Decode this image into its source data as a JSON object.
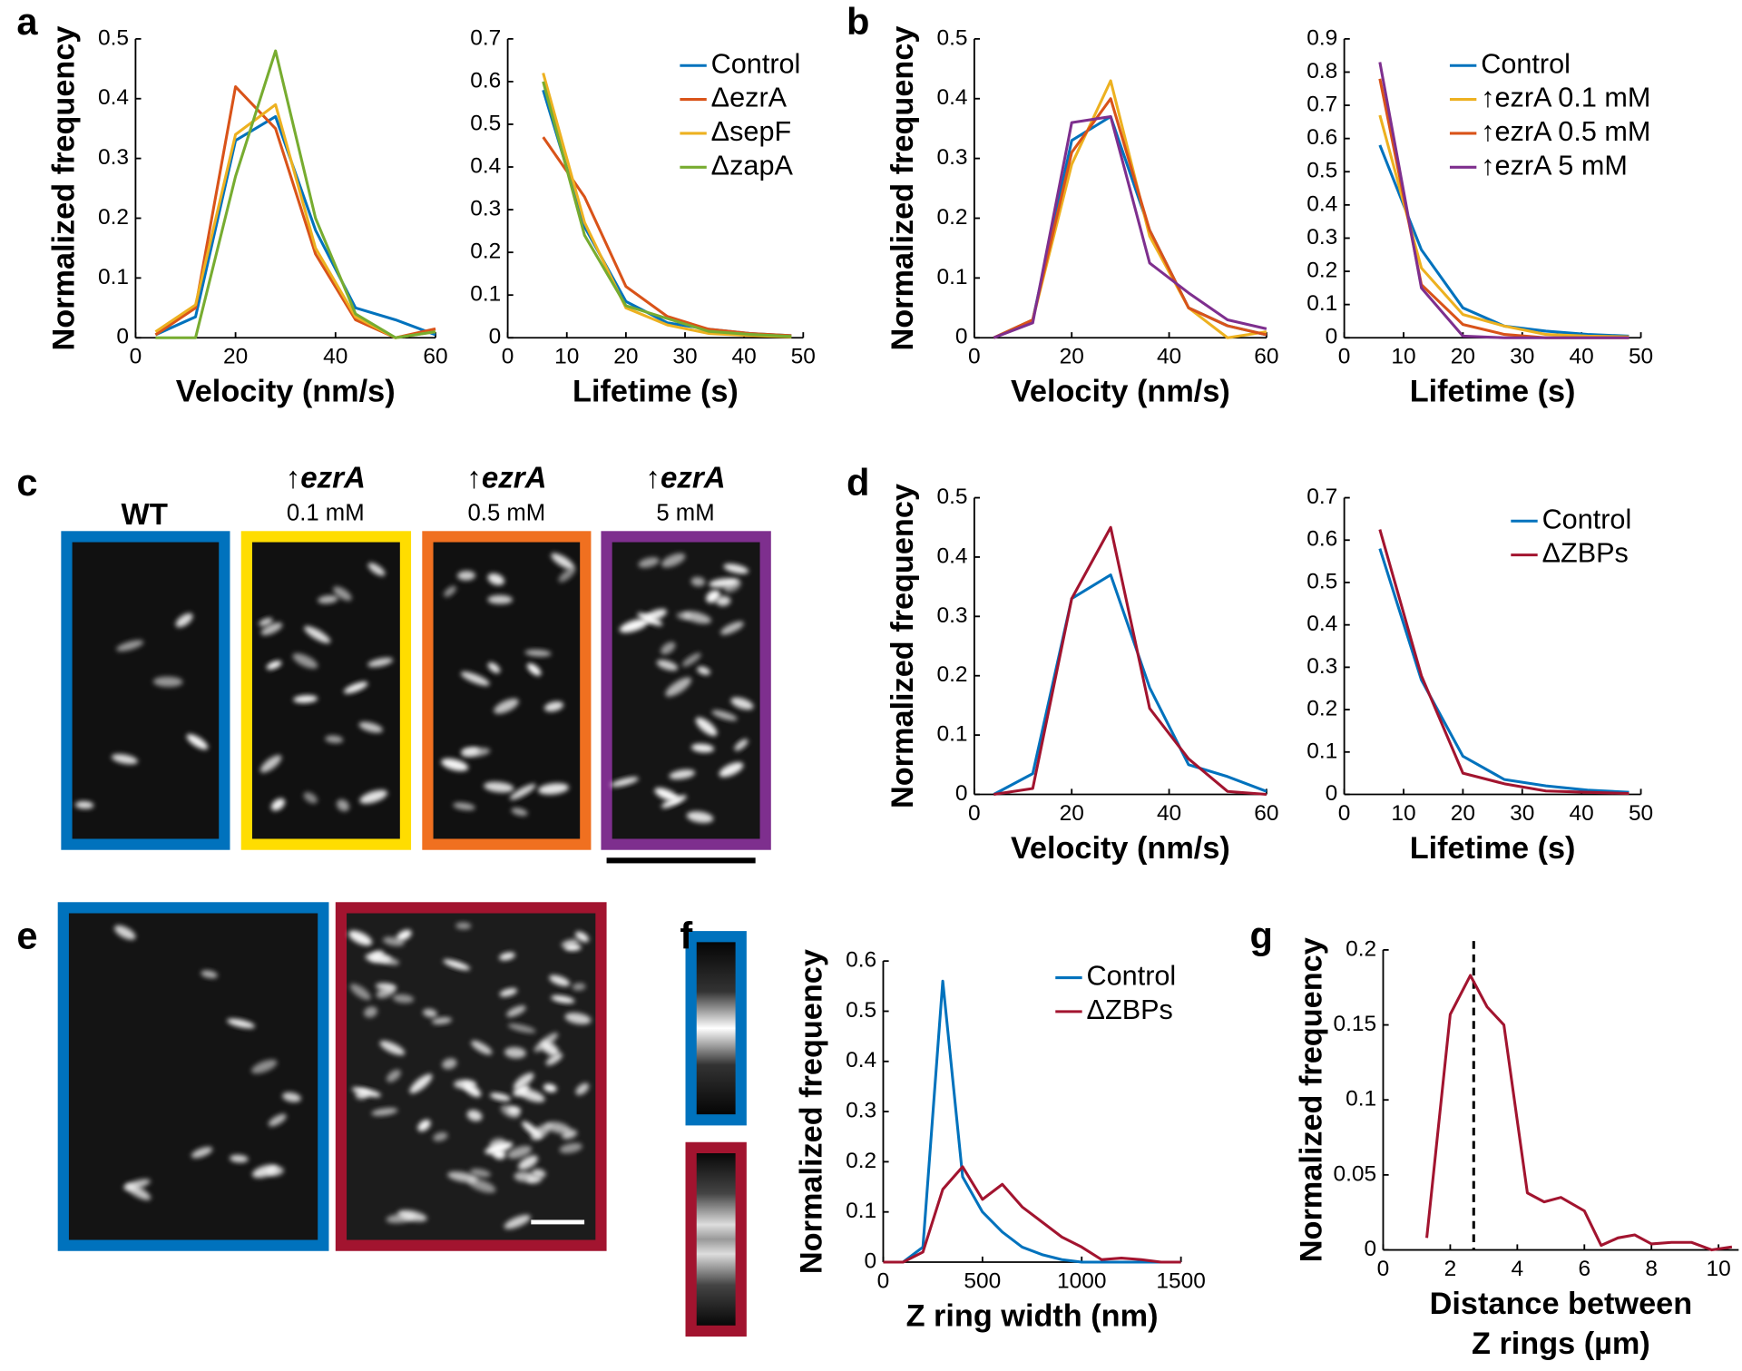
{
  "chart_data": [
    {
      "type": "line",
      "ylabel": "Normalized frequency",
      "xlabel": "Velocity (nm/s)",
      "x": [
        4,
        12,
        20,
        28,
        36,
        44,
        52,
        60
      ],
      "xlim": [
        0,
        60
      ],
      "xticks": [
        0,
        20,
        40,
        60
      ],
      "ylim": [
        0,
        0.5
      ],
      "yticks": [
        0,
        0.1,
        0.2,
        0.3,
        0.4,
        0.5
      ],
      "series": [
        {
          "name": "Control",
          "color": "#0072bd",
          "values": [
            0.005,
            0.035,
            0.33,
            0.37,
            0.18,
            0.05,
            0.03,
            0.005
          ]
        },
        {
          "name": "ΔezrA",
          "color": "#d95319",
          "values": [
            0.005,
            0.05,
            0.42,
            0.35,
            0.14,
            0.03,
            0,
            0.015
          ]
        },
        {
          "name": "ΔsepF",
          "color": "#edb120",
          "values": [
            0.01,
            0.055,
            0.34,
            0.39,
            0.15,
            0.035,
            0,
            0.01
          ]
        },
        {
          "name": "ΔzapA",
          "color": "#77ac30",
          "values": [
            0,
            0,
            0.27,
            0.48,
            0.2,
            0.04,
            0,
            0.01
          ]
        }
      ]
    },
    {
      "type": "line",
      "xlabel": "Lifetime (s)",
      "legend": "upper right",
      "x": [
        6,
        13,
        20,
        27,
        34,
        41,
        48
      ],
      "xlim": [
        0,
        50
      ],
      "xticks": [
        0,
        10,
        20,
        30,
        40,
        50
      ],
      "ylim": [
        0,
        0.7
      ],
      "yticks": [
        0,
        0.1,
        0.2,
        0.3,
        0.4,
        0.5,
        0.6,
        0.7
      ],
      "series": [
        {
          "name": "Control",
          "color": "#0072bd",
          "values": [
            0.58,
            0.26,
            0.085,
            0.035,
            0.02,
            0.01,
            0.005
          ]
        },
        {
          "name": "ΔezrA",
          "color": "#d95319",
          "values": [
            0.47,
            0.33,
            0.12,
            0.05,
            0.02,
            0.01,
            0.005
          ]
        },
        {
          "name": "ΔsepF",
          "color": "#edb120",
          "values": [
            0.62,
            0.27,
            0.07,
            0.03,
            0.01,
            0.005,
            0.002
          ]
        },
        {
          "name": "ΔzapA",
          "color": "#77ac30",
          "values": [
            0.6,
            0.24,
            0.075,
            0.045,
            0.015,
            0.008,
            0.003
          ]
        }
      ]
    },
    {
      "type": "line",
      "ylabel": "Normalized frequency",
      "xlabel": "Velocity (nm/s)",
      "x": [
        4,
        12,
        20,
        28,
        36,
        44,
        52,
        60
      ],
      "xlim": [
        0,
        60
      ],
      "xticks": [
        0,
        20,
        40,
        60
      ],
      "ylim": [
        0,
        0.5
      ],
      "yticks": [
        0,
        0.1,
        0.2,
        0.3,
        0.4,
        0.5
      ],
      "series": [
        {
          "name": "Control",
          "color": "#0072bd",
          "values": [
            0,
            0.03,
            0.33,
            0.37,
            0.18,
            0.05,
            0.02,
            0.005
          ]
        },
        {
          "name": "↑ezrA 0.1 mM",
          "color": "#edb120",
          "values": [
            0,
            0.03,
            0.29,
            0.43,
            0.17,
            0.05,
            0,
            0.01
          ]
        },
        {
          "name": "↑ezrA 0.5 mM",
          "color": "#d95319",
          "values": [
            0,
            0.03,
            0.31,
            0.4,
            0.18,
            0.05,
            0.02,
            0.005
          ]
        },
        {
          "name": "↑ezrA 5 mM",
          "color": "#7e2f8e",
          "values": [
            0,
            0.025,
            0.36,
            0.37,
            0.125,
            0.075,
            0.03,
            0.015
          ]
        }
      ]
    },
    {
      "type": "line",
      "xlabel": "Lifetime (s)",
      "legend": "upper right",
      "x": [
        6,
        13,
        20,
        27,
        34,
        41,
        48
      ],
      "xlim": [
        0,
        50
      ],
      "xticks": [
        0,
        10,
        20,
        30,
        40,
        50
      ],
      "ylim": [
        0,
        0.9
      ],
      "yticks": [
        0,
        0.1,
        0.2,
        0.3,
        0.4,
        0.5,
        0.6,
        0.7,
        0.8,
        0.9
      ],
      "series": [
        {
          "name": "Control",
          "color": "#0072bd",
          "values": [
            0.58,
            0.265,
            0.09,
            0.035,
            0.02,
            0.01,
            0.005
          ]
        },
        {
          "name": "↑ezrA 0.1 mM",
          "color": "#edb120",
          "values": [
            0.67,
            0.21,
            0.07,
            0.035,
            0.01,
            0.005,
            0.003
          ]
        },
        {
          "name": "↑ezrA 0.5 mM",
          "color": "#d95319",
          "values": [
            0.78,
            0.16,
            0.04,
            0.01,
            0,
            0,
            0
          ]
        },
        {
          "name": "↑ezrA 5 mM",
          "color": "#7e2f8e",
          "values": [
            0.83,
            0.15,
            0.005,
            0,
            0,
            0,
            0
          ]
        }
      ]
    },
    {
      "type": "line",
      "ylabel": "Normalized frequency",
      "xlabel": "Velocity (nm/s)",
      "x": [
        4,
        12,
        20,
        28,
        36,
        44,
        52,
        60
      ],
      "xlim": [
        0,
        60
      ],
      "xticks": [
        0,
        20,
        40,
        60
      ],
      "ylim": [
        0,
        0.5
      ],
      "yticks": [
        0,
        0.1,
        0.2,
        0.3,
        0.4,
        0.5
      ],
      "series": [
        {
          "name": "Control",
          "color": "#0072bd",
          "values": [
            0,
            0.035,
            0.33,
            0.37,
            0.18,
            0.05,
            0.03,
            0.005
          ]
        },
        {
          "name": "ΔZBPs",
          "color": "#a2142f",
          "values": [
            0,
            0.01,
            0.33,
            0.45,
            0.145,
            0.06,
            0.005,
            0
          ]
        }
      ]
    },
    {
      "type": "line",
      "xlabel": "Lifetime (s)",
      "legend": "upper right",
      "x": [
        6,
        13,
        20,
        27,
        34,
        41,
        48
      ],
      "xlim": [
        0,
        50
      ],
      "xticks": [
        0,
        10,
        20,
        30,
        40,
        50
      ],
      "ylim": [
        0,
        0.7
      ],
      "yticks": [
        0,
        0.1,
        0.2,
        0.3,
        0.4,
        0.5,
        0.6,
        0.7
      ],
      "series": [
        {
          "name": "Control",
          "color": "#0072bd",
          "values": [
            0.58,
            0.27,
            0.09,
            0.035,
            0.02,
            0.01,
            0.005
          ]
        },
        {
          "name": "ΔZBPs",
          "color": "#a2142f",
          "values": [
            0.625,
            0.28,
            0.05,
            0.025,
            0.008,
            0.005,
            0.002
          ]
        }
      ]
    },
    {
      "type": "line",
      "ylabel": "Normalized frequency",
      "xlabel": "Z ring width (nm)",
      "legend": "upper right",
      "x": [
        0,
        100,
        200,
        300,
        400,
        500,
        600,
        700,
        800,
        900,
        1000,
        1100,
        1200,
        1300,
        1400,
        1500
      ],
      "xlim": [
        0,
        1500
      ],
      "xticks": [
        0,
        500,
        1000,
        1500
      ],
      "ylim": [
        0,
        0.6
      ],
      "yticks": [
        0,
        0.1,
        0.2,
        0.3,
        0.4,
        0.5,
        0.6
      ],
      "series": [
        {
          "name": "Control",
          "color": "#0072bd",
          "values": [
            0,
            0,
            0.03,
            0.56,
            0.17,
            0.1,
            0.06,
            0.03,
            0.015,
            0.005,
            0,
            0,
            0,
            0,
            0,
            0
          ]
        },
        {
          "name": "ΔZBPs",
          "color": "#a2142f",
          "values": [
            0,
            0,
            0.02,
            0.145,
            0.19,
            0.125,
            0.155,
            0.11,
            0.08,
            0.05,
            0.03,
            0.005,
            0.008,
            0.005,
            0,
            0
          ]
        }
      ]
    },
    {
      "type": "line",
      "ylabel": "Normalized frequency",
      "xlabel": [
        "Distance between",
        "Z rings (µm)"
      ],
      "x": [
        1.3,
        2.0,
        2.6,
        3.1,
        3.6,
        4.3,
        4.8,
        5.3,
        6.0,
        6.5,
        7.0,
        7.5,
        8.0,
        8.6,
        9.2,
        9.8,
        10.4
      ],
      "xlim": [
        0,
        10.6
      ],
      "xticks": [
        0,
        2,
        4,
        6,
        8,
        10
      ],
      "ylim": [
        0,
        0.2
      ],
      "yticks": [
        0,
        0.05,
        0.1,
        0.15,
        0.2
      ],
      "vline": 2.7,
      "series": [
        {
          "color": "#a2142f",
          "values": [
            0.008,
            0.157,
            0.183,
            0.162,
            0.15,
            0.038,
            0.032,
            0.035,
            0.026,
            0.003,
            0.008,
            0.01,
            0.004,
            0.005,
            0.005,
            0,
            0.002
          ]
        }
      ]
    }
  ],
  "panel_letters": [
    "a",
    "b",
    "c",
    "d",
    "e",
    "f",
    "g"
  ],
  "image_labels": [
    "WT",
    "↑ezrA",
    "0.1 mM",
    "↑ezrA",
    "0.5 mM",
    "↑ezrA",
    "5 mM"
  ]
}
